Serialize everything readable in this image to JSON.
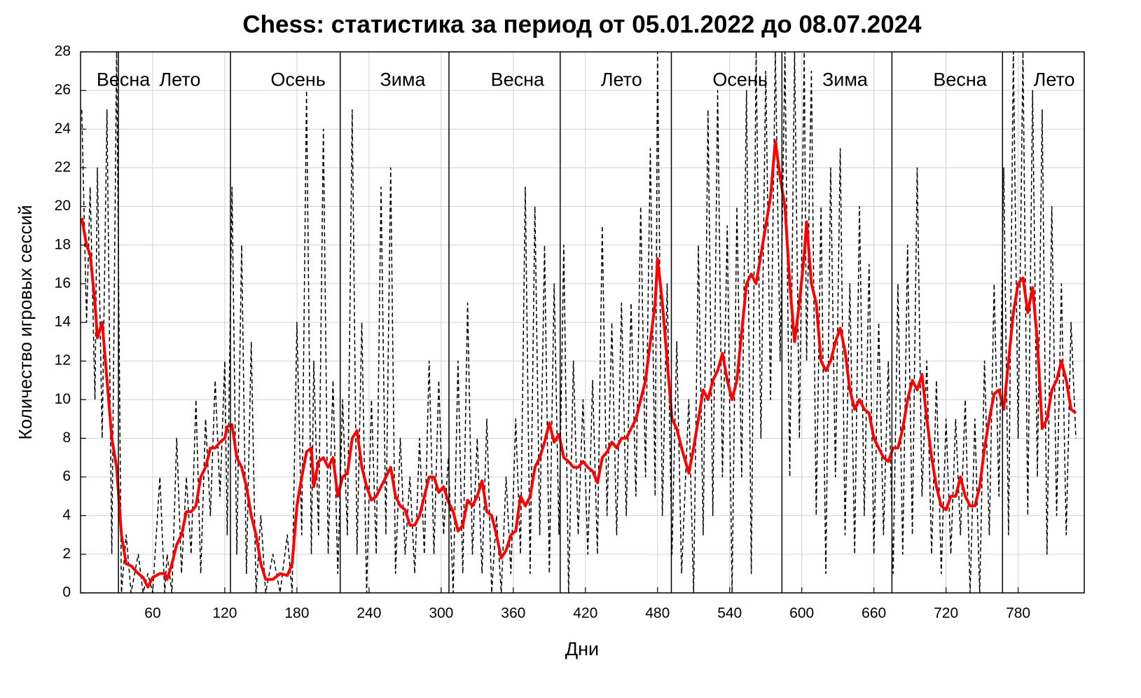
{
  "chart_data": {
    "type": "line",
    "title": "Chess: статистика за период от 05.01.2022 до 08.07.2024",
    "x_label": "Дни",
    "y_label": "Количество игровых сессий",
    "xlim": [
      0,
      835
    ],
    "ylim": [
      0,
      28
    ],
    "xticks": [
      60,
      120,
      180,
      240,
      300,
      360,
      420,
      480,
      540,
      600,
      660,
      720,
      780
    ],
    "yticks": [
      0,
      2,
      4,
      6,
      8,
      10,
      12,
      14,
      16,
      18,
      20,
      22,
      24,
      26,
      28
    ],
    "grid": true,
    "vlines": [
      31.5,
      124.7,
      216,
      306.5,
      399,
      491.5,
      583.5,
      675,
      767
    ],
    "annotations": [
      {
        "text": "Весна",
        "x": 35.6,
        "y": 26.5
      },
      {
        "text": "Лето",
        "x": 82.7,
        "y": 26.5
      },
      {
        "text": "Осень",
        "x": 181,
        "y": 26.5
      },
      {
        "text": "Зима",
        "x": 268,
        "y": 26.5
      },
      {
        "text": "Весна",
        "x": 363.5,
        "y": 26.5
      },
      {
        "text": "Лето",
        "x": 450,
        "y": 26.5
      },
      {
        "text": "Осень",
        "x": 548.7,
        "y": 26.5
      },
      {
        "text": "Зима",
        "x": 636,
        "y": 26.5
      },
      {
        "text": "Весна",
        "x": 731.6,
        "y": 26.5
      },
      {
        "text": "Лето",
        "x": 810,
        "y": 26.5
      }
    ],
    "x": [
      1,
      5,
      8,
      12,
      14,
      18,
      22,
      26,
      30,
      34,
      38,
      42,
      48,
      52,
      56,
      60,
      66,
      70,
      72,
      76,
      80,
      84,
      88,
      92,
      96,
      100,
      104,
      108,
      112,
      116,
      120,
      122,
      126,
      130,
      134,
      138,
      142,
      146,
      150,
      154,
      160,
      166,
      172,
      176,
      180,
      184,
      188,
      192,
      194,
      198,
      202,
      206,
      210,
      214,
      218,
      222,
      226,
      230,
      234,
      238,
      242,
      246,
      250,
      254,
      258,
      262,
      266,
      270,
      274,
      278,
      282,
      286,
      290,
      294,
      298,
      302,
      306,
      310,
      314,
      318,
      322,
      326,
      330,
      334,
      338,
      342,
      346,
      350,
      354,
      358,
      362,
      366,
      370,
      374,
      378,
      382,
      386,
      390,
      394,
      398,
      402,
      406,
      410,
      414,
      418,
      422,
      426,
      430,
      434,
      438,
      442,
      446,
      450,
      454,
      458,
      462,
      466,
      470,
      474,
      478,
      480,
      484,
      488,
      492,
      496,
      500,
      506,
      510,
      514,
      518,
      522,
      526,
      530,
      534,
      538,
      542,
      546,
      550,
      554,
      558,
      562,
      566,
      570,
      574,
      578,
      582,
      586,
      590,
      594,
      598,
      602,
      604,
      608,
      612,
      616,
      620,
      624,
      628,
      632,
      636,
      640,
      644,
      648,
      652,
      656,
      660,
      664,
      668,
      672,
      676,
      680,
      684,
      688,
      692,
      696,
      700,
      704,
      708,
      712,
      716,
      720,
      724,
      728,
      732,
      736,
      740,
      744,
      748,
      752,
      756,
      760,
      764,
      768,
      772,
      776,
      780,
      784,
      788,
      792,
      796,
      800,
      804,
      808,
      812,
      816,
      820,
      824,
      828
    ],
    "series": [
      {
        "color": "#000000",
        "style": "dashed",
        "width": 1.5,
        "values": [
          25,
          14,
          21,
          10,
          22,
          8,
          25,
          2,
          28,
          0,
          3,
          0,
          2,
          0,
          1,
          0,
          6,
          0,
          2,
          0,
          8,
          1,
          6,
          2,
          10,
          1,
          9,
          4,
          11,
          5,
          12,
          3,
          21,
          2,
          18,
          1,
          13,
          0,
          4,
          0,
          2,
          0,
          3,
          0,
          14,
          3,
          26,
          2,
          12,
          3,
          24,
          2,
          11,
          1,
          10,
          3,
          25,
          2,
          14,
          0,
          10,
          2,
          21,
          3,
          22,
          1,
          8,
          2,
          6,
          1,
          8,
          2,
          12,
          2,
          11,
          3,
          7,
          0,
          12,
          1,
          15,
          2,
          8,
          1,
          9,
          0,
          4,
          0,
          6,
          1,
          9,
          2,
          21,
          1,
          20,
          3,
          18,
          1,
          16,
          3,
          18,
          0,
          12,
          3,
          10,
          2,
          11,
          2,
          19,
          4,
          14,
          3,
          15,
          4,
          15,
          5,
          20,
          6,
          23,
          5,
          28,
          4,
          16,
          2,
          13,
          1,
          10,
          0,
          18,
          3,
          25,
          4,
          26,
          6,
          19,
          0,
          20,
          6,
          26,
          1,
          28,
          8,
          27,
          10,
          28,
          12,
          28,
          6,
          28,
          8,
          28,
          12,
          27,
          4,
          20,
          1,
          22,
          6,
          23,
          3,
          16,
          2,
          20,
          4,
          17,
          2,
          14,
          3,
          12,
          1,
          16,
          2,
          18,
          3,
          22,
          5,
          12,
          2,
          11,
          1,
          9,
          2,
          9,
          3,
          10,
          0,
          9,
          0,
          12,
          3,
          16,
          5,
          22,
          3,
          28,
          8,
          28,
          4,
          26,
          6,
          25,
          2,
          20,
          4,
          16,
          3,
          14,
          8
        ]
      },
      {
        "color": "#ff0000",
        "style": "solid",
        "width": 4,
        "values": [
          19.4,
          18,
          17.5,
          15,
          13.2,
          14,
          11,
          8,
          6.5,
          3,
          1.5,
          1.4,
          1,
          0.8,
          0.3,
          0.8,
          1,
          1,
          0.7,
          1.5,
          2.5,
          3,
          4.2,
          4.2,
          4.5,
          6,
          6.5,
          7.5,
          7.5,
          7.8,
          8,
          8.6,
          8.7,
          7,
          6.5,
          5.5,
          4,
          3,
          1.5,
          0.7,
          0.7,
          1,
          0.9,
          1.5,
          4.5,
          6,
          7.3,
          7.5,
          5.5,
          6.8,
          7,
          6.5,
          7,
          5,
          6,
          6.2,
          8,
          8.4,
          6.5,
          5.5,
          4.8,
          5,
          5.5,
          6,
          6.5,
          5,
          4.5,
          4.3,
          3.5,
          3.5,
          4,
          5,
          6,
          6,
          5.2,
          5.5,
          4.7,
          4.2,
          3.2,
          3.5,
          4.8,
          4.5,
          5,
          5.8,
          4.2,
          4,
          3,
          1.8,
          2.2,
          3,
          3.2,
          5,
          4.5,
          5,
          6.5,
          7,
          7.8,
          8.8,
          7.8,
          8.2,
          7,
          6.8,
          6.5,
          6.5,
          6.8,
          6.5,
          6.3,
          5.7,
          7,
          7.3,
          7.8,
          7.5,
          8,
          8,
          8.5,
          9,
          10,
          11,
          13,
          15,
          17.3,
          15,
          12,
          9,
          8.5,
          7.5,
          6.2,
          7.5,
          9,
          10.5,
          10,
          11,
          11.5,
          12.4,
          11,
          10,
          11,
          13.5,
          16,
          16.5,
          16,
          17.5,
          19,
          20.5,
          23.4,
          21.5,
          20,
          16,
          13,
          15,
          17.5,
          19.2,
          16,
          15,
          12,
          11.5,
          12,
          13,
          13.7,
          12.5,
          10.5,
          9.5,
          10,
          9.5,
          9.3,
          8,
          7.5,
          7,
          6.8,
          7.5,
          7.5,
          8.5,
          10,
          11,
          10.5,
          11.3,
          9,
          7,
          5.5,
          4.5,
          4.3,
          5,
          5,
          6,
          5,
          4.5,
          4.5,
          5.5,
          7.5,
          9,
          10.3,
          10.5,
          9.5,
          12,
          14.5,
          16,
          16.3,
          14.5,
          15.8,
          13,
          8.5,
          9,
          10.5,
          11,
          12,
          11,
          9.5,
          9.3
        ]
      }
    ]
  }
}
